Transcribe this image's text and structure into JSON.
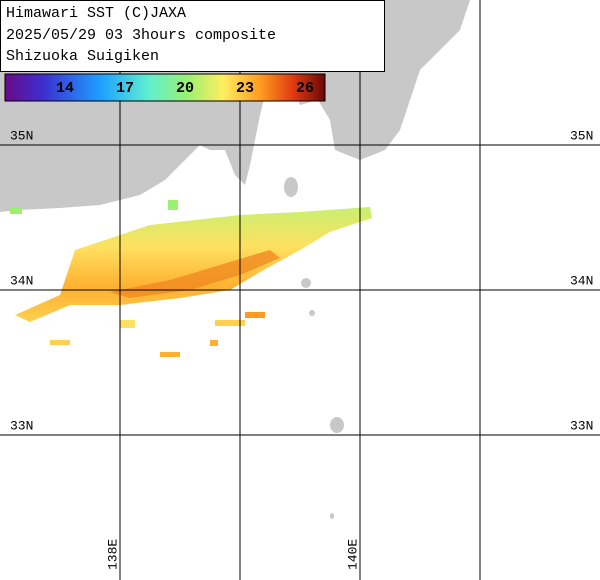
{
  "header": {
    "lines": [
      "Himawari SST (C)JAXA",
      "2025/05/29 03 3hours composite",
      "Shizuoka Suigiken"
    ]
  },
  "colorbar": {
    "range": [
      11,
      27
    ],
    "ticks": [
      14,
      17,
      20,
      23,
      26
    ]
  },
  "map": {
    "lon_range": [
      137,
      142
    ],
    "lat_range": [
      32,
      36
    ],
    "lat_lines": [
      {
        "value": 35,
        "label": "35N"
      },
      {
        "value": 34,
        "label": "34N"
      },
      {
        "value": 33,
        "label": "33N"
      }
    ],
    "lon_lines": [
      {
        "value": 138,
        "label": "138E"
      },
      139,
      {
        "value": 140,
        "label": "140E"
      },
      141
    ]
  }
}
